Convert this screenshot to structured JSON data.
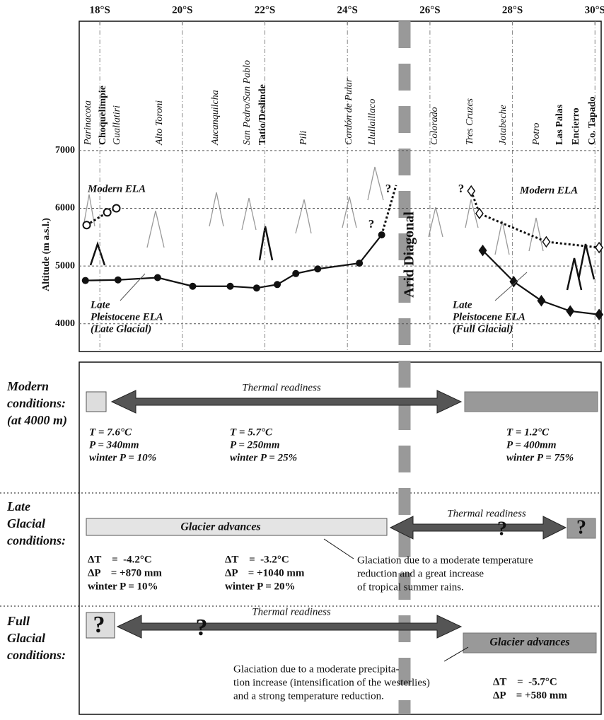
{
  "chart_data": {
    "type": "line",
    "y_label": "Altitude (m a.s.l.)",
    "xlim": [
      17.5,
      30.15
    ],
    "xticks": [
      {
        "value": 18,
        "label": "18°S"
      },
      {
        "value": 20,
        "label": "20°S"
      },
      {
        "value": 22,
        "label": "22°S"
      },
      {
        "value": 24,
        "label": "24°S"
      },
      {
        "value": 26,
        "label": "26°S"
      },
      {
        "value": 28,
        "label": "28°S"
      },
      {
        "value": 30,
        "label": "30°S"
      }
    ],
    "ylim": [
      3520,
      9240
    ],
    "yticks": [
      4000,
      5000,
      6000,
      7000
    ],
    "grid": true,
    "volcanoes": [
      "Parinacota",
      "Choquelimpie",
      "Guallatiri",
      "Alto Toroni",
      "Aucanquilcha",
      "San Pedro/San Pablo",
      "Tatio/Deslinde",
      "Pili",
      "Cordón de Pular",
      "Llullaillaco",
      "Colorado",
      "Tres Cruzes",
      "Jotabeche",
      "Potro",
      "Las Palas",
      "Encierro",
      "Co. Tapado"
    ],
    "series": [
      {
        "color": "#111111",
        "dash": false,
        "marker": "circle",
        "x": [
          17.65,
          18.44,
          19.4,
          20.25,
          21.16,
          21.8,
          22.3,
          22.75,
          23.28,
          24.29,
          24.83
        ],
        "values": [
          4750,
          4760,
          4800,
          4650,
          4650,
          4620,
          4680,
          4870,
          4950,
          5050,
          5540
        ]
      },
      {
        "color": "#111111",
        "dash": true,
        "marker": "none",
        "x": [
          24.83,
          25.18
        ],
        "values": [
          5540,
          6400
        ]
      },
      {
        "color": "#111111",
        "dash": false,
        "marker": "diamond",
        "x": [
          27.28,
          28.03,
          28.7,
          29.4,
          30.1
        ],
        "values": [
          5270,
          4730,
          4400,
          4220,
          4160
        ]
      },
      {
        "color": "#111111",
        "dash": true,
        "marker": "open-diamond",
        "x": [
          27.0,
          27.2,
          28.82,
          30.1
        ],
        "values": [
          6300,
          5910,
          5420,
          5320
        ]
      },
      {
        "color": "#111111",
        "dash": true,
        "marker": "open-circle",
        "x": [
          17.68,
          18.18,
          18.4
        ],
        "values": [
          5710,
          5930,
          6000
        ]
      }
    ],
    "annotations": {
      "modern_ela": "Modern ELA",
      "late_label": [
        "Late",
        "Pleistocene ELA",
        "(Late Glacial)"
      ],
      "full_label": [
        "Late",
        "Pleistocene ELA",
        "(Full Glacial)"
      ],
      "question": "?"
    }
  },
  "arid_diagonal": "Arid Diagonal",
  "panels": [
    {
      "heading": [
        "Modern",
        "conditions:",
        "(at 4000 m)"
      ],
      "arrow_label": "Thermal readiness",
      "blocks": [
        [
          "T = 7.6°C",
          "P = 340mm",
          "winter P = 10%"
        ],
        [
          "T = 5.7°C",
          "P = 250mm",
          "winter P = 25%"
        ],
        [
          "T = 1.2°C",
          "P = 400mm",
          "winter P = 75%"
        ]
      ]
    },
    {
      "heading": [
        "Late",
        "Glacial",
        "conditions:"
      ],
      "box_label": "Glacier advances",
      "arrow_label": "Thermal readiness",
      "question": "?",
      "blocks": [
        [
          "ΔT    =  -4.2°C",
          "ΔP    = +870 mm",
          "winter P = 10%"
        ],
        [
          "ΔT    =  -3.2°C",
          "ΔP    = +1040 mm",
          "winter P = 20%"
        ]
      ],
      "note": [
        "Glaciation due to a moderate temperature",
        "reduction and a great increase",
        "of tropical summer rains."
      ]
    },
    {
      "heading": [
        "Full",
        "Glacial",
        "conditions:"
      ],
      "box_label": "Glacier advances",
      "arrow_label": "Thermal readiness",
      "question": "?",
      "blocks": [
        [
          "ΔT    =  -5.7°C",
          "ΔP    = +580 mm"
        ]
      ],
      "note": [
        "Glaciation due to a moderate precipita-",
        "tion increase (intensification of the westerlies)",
        "and a strong temperature reduction."
      ]
    }
  ]
}
